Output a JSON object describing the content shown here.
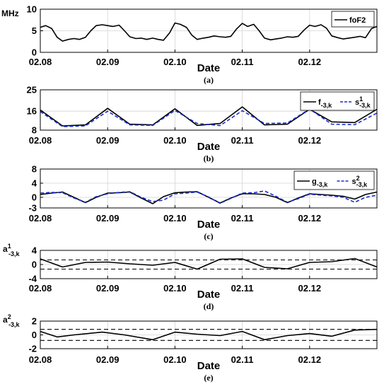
{
  "chart_data": [
    {
      "type": "line",
      "caption": "(a)",
      "ylabel": "MHz",
      "xlabel": "Date",
      "x_ticks": [
        "02.08",
        "02.09",
        "02.10",
        "02.11",
        "02.12"
      ],
      "x_range": [
        0,
        5
      ],
      "ylim": [
        0,
        10
      ],
      "y_ticks": [
        "0",
        "5",
        "10"
      ],
      "grid": true,
      "legend": "top-right",
      "series": [
        {
          "name": "foF2",
          "color": "#000000",
          "dash": "solid",
          "x": [
            0,
            0.08,
            0.17,
            0.25,
            0.33,
            0.42,
            0.5,
            0.58,
            0.67,
            0.75,
            0.83,
            0.92,
            1.0,
            1.08,
            1.17,
            1.25,
            1.33,
            1.42,
            1.5,
            1.58,
            1.67,
            1.75,
            1.83,
            1.92,
            2.0,
            2.08,
            2.17,
            2.25,
            2.33,
            2.42,
            2.5,
            2.58,
            2.67,
            2.75,
            2.83,
            2.92,
            3.0,
            3.08,
            3.17,
            3.25,
            3.33,
            3.42,
            3.5,
            3.58,
            3.67,
            3.75,
            3.83,
            3.92,
            4.0,
            4.08,
            4.17,
            4.25,
            4.33,
            4.42,
            4.5,
            4.58,
            4.67,
            4.75,
            4.83,
            4.92,
            5.0
          ],
          "y": [
            5.8,
            6.2,
            5.5,
            3.5,
            2.6,
            3.0,
            3.2,
            3.0,
            3.5,
            5.0,
            6.2,
            6.4,
            6.2,
            6.0,
            6.3,
            5.0,
            3.6,
            3.2,
            3.3,
            3.0,
            3.3,
            3.0,
            2.8,
            4.5,
            6.8,
            6.5,
            5.8,
            4.0,
            3.0,
            3.3,
            3.5,
            3.8,
            3.6,
            3.5,
            3.7,
            5.5,
            6.7,
            6.0,
            6.5,
            5.0,
            3.3,
            2.9,
            3.1,
            3.3,
            3.6,
            3.5,
            3.7,
            5.2,
            6.3,
            6.0,
            6.4,
            5.6,
            3.8,
            3.4,
            3.1,
            3.3,
            3.5,
            3.7,
            3.4,
            5.5,
            6.0
          ]
        }
      ]
    },
    {
      "type": "line",
      "caption": "(b)",
      "xlabel": "Date",
      "x_ticks": [
        "02.08",
        "02.09",
        "02.10",
        "02.11",
        "02.12"
      ],
      "x_range": [
        0,
        5
      ],
      "ylim": [
        8,
        25
      ],
      "y_ticks": [
        "8",
        "16",
        "25"
      ],
      "grid": true,
      "legend": "top-right",
      "series": [
        {
          "name": "f",
          "name_sub": "-3,k",
          "name_sup": "",
          "color": "#000000",
          "dash": "solid",
          "x": [
            0,
            0.33,
            0.67,
            1.0,
            1.33,
            1.67,
            2.0,
            2.33,
            2.67,
            3.0,
            3.33,
            3.67,
            4.0,
            4.33,
            4.67,
            5.0
          ],
          "y": [
            16.5,
            9.8,
            10.2,
            17.2,
            10.5,
            10.2,
            17.0,
            10.0,
            10.8,
            17.8,
            10.2,
            10.5,
            16.8,
            11.5,
            11.2,
            16.8
          ]
        },
        {
          "name": "s",
          "name_sub": "-3,k",
          "name_sup": "1",
          "color": "#1a2fcc",
          "dash": "dashed",
          "x": [
            0,
            0.33,
            0.67,
            1.0,
            1.33,
            1.67,
            2.0,
            2.33,
            2.67,
            3.0,
            3.33,
            3.67,
            4.0,
            4.33,
            4.67,
            5.0
          ],
          "y": [
            15.8,
            9.5,
            9.8,
            16.0,
            10.2,
            10.0,
            16.3,
            10.8,
            9.9,
            16.2,
            10.8,
            11.0,
            16.9,
            10.5,
            10.3,
            15.2
          ]
        }
      ]
    },
    {
      "type": "line",
      "caption": "(c)",
      "xlabel": "Date",
      "x_ticks": [
        "02.08",
        "02.09",
        "02.10",
        "02.11",
        "02.12"
      ],
      "x_range": [
        0,
        5
      ],
      "ylim": [
        -3,
        8
      ],
      "y_ticks": [
        "-3",
        "0",
        "4",
        "8"
      ],
      "grid": true,
      "legend": "top-right",
      "series": [
        {
          "name": "g",
          "name_sub": "-3,k",
          "name_sup": "",
          "color": "#000000",
          "dash": "solid",
          "x": [
            0,
            0.17,
            0.33,
            0.5,
            0.67,
            0.83,
            1.0,
            1.17,
            1.33,
            1.5,
            1.67,
            1.83,
            2.0,
            2.17,
            2.33,
            2.5,
            2.67,
            2.83,
            3.0,
            3.17,
            3.33,
            3.5,
            3.67,
            3.83,
            4.0,
            4.17,
            4.33,
            4.5,
            4.67,
            4.83,
            5.0
          ],
          "y": [
            0.8,
            1.2,
            1.5,
            0.0,
            -1.5,
            0.0,
            1.2,
            1.3,
            1.5,
            -0.2,
            -1.8,
            0.2,
            1.3,
            1.5,
            1.6,
            0.0,
            -1.6,
            -0.2,
            1.0,
            1.0,
            0.8,
            0.0,
            -1.5,
            -0.2,
            1.0,
            0.8,
            0.6,
            0.3,
            -0.5,
            0.8,
            1.5
          ]
        },
        {
          "name": "s",
          "name_sub": "-3,k",
          "name_sup": "2",
          "color": "#1a2fcc",
          "dash": "dashed",
          "x": [
            0,
            0.17,
            0.33,
            0.5,
            0.67,
            0.83,
            1.0,
            1.17,
            1.33,
            1.5,
            1.67,
            1.83,
            2.0,
            2.17,
            2.33,
            2.5,
            2.67,
            2.83,
            3.0,
            3.17,
            3.33,
            3.5,
            3.67,
            3.83,
            4.0,
            4.17,
            4.33,
            4.5,
            4.67,
            4.83,
            5.0
          ],
          "y": [
            1.2,
            1.4,
            1.3,
            -0.2,
            -1.4,
            0.2,
            1.0,
            1.4,
            1.6,
            0.0,
            -1.2,
            -0.8,
            1.0,
            1.2,
            1.5,
            0.1,
            -1.7,
            -0.3,
            1.2,
            1.3,
            1.8,
            0.3,
            -1.4,
            -0.4,
            0.9,
            0.6,
            0.4,
            0.0,
            -1.4,
            0.0,
            0.6
          ]
        }
      ]
    },
    {
      "type": "line",
      "caption": "(d)",
      "ylabel": "a",
      "ylabel_sup": "1",
      "ylabel_sub": "-3,k",
      "xlabel": "Date",
      "x_ticks": [
        "02.08",
        "02.09",
        "02.10",
        "02.11",
        "02.12"
      ],
      "x_range": [
        0,
        5
      ],
      "ylim": [
        -4,
        4
      ],
      "y_ticks": [
        "-4",
        "0",
        "4"
      ],
      "grid": true,
      "reference_lines": [
        1.3,
        -1.3
      ],
      "series": [
        {
          "color": "#000000",
          "dash": "solid",
          "x": [
            0,
            0.33,
            0.67,
            1.0,
            1.33,
            1.67,
            2.0,
            2.33,
            2.67,
            3.0,
            3.33,
            3.67,
            4.0,
            4.33,
            4.67,
            5.0
          ],
          "y": [
            1.6,
            -0.7,
            0.6,
            0.7,
            0.2,
            -0.2,
            0.6,
            -1.3,
            1.5,
            1.6,
            -0.8,
            -1.2,
            0.6,
            0.8,
            1.7,
            -0.7
          ]
        }
      ]
    },
    {
      "type": "line",
      "caption": "(e)",
      "ylabel": "a",
      "ylabel_sup": "2",
      "ylabel_sub": "-3,k",
      "xlabel": "Date",
      "x_ticks": [
        "02.08",
        "02.09",
        "02.10",
        "02.11",
        "02.12"
      ],
      "x_range": [
        0,
        5
      ],
      "ylim": [
        -2,
        2
      ],
      "y_ticks": [
        "-2",
        "0",
        "2"
      ],
      "grid": true,
      "reference_lines": [
        0.8,
        -0.8
      ],
      "series": [
        {
          "color": "#000000",
          "dash": "solid",
          "x": [
            0,
            0.25,
            0.5,
            0.92,
            1.25,
            1.67,
            2.0,
            2.33,
            2.67,
            3.0,
            3.33,
            3.67,
            4.0,
            4.33,
            4.67,
            5.0
          ],
          "y": [
            0.5,
            -0.3,
            0.0,
            0.4,
            0.0,
            -0.7,
            0.4,
            0.1,
            -0.1,
            0.5,
            -0.7,
            -0.1,
            0.2,
            -0.2,
            0.7,
            0.8
          ]
        }
      ]
    }
  ]
}
